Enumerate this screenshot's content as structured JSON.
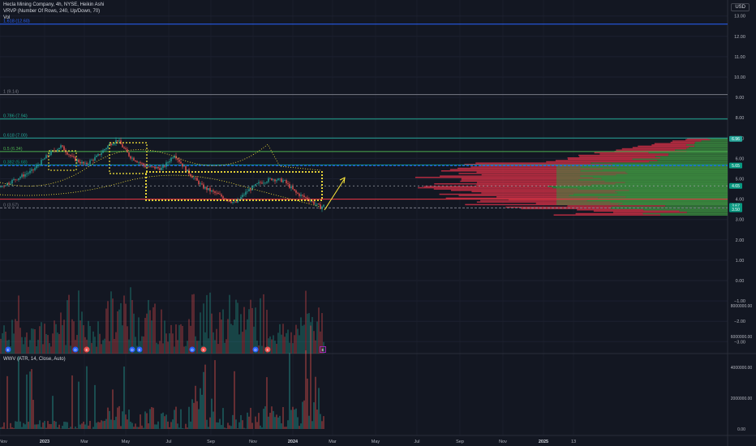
{
  "header": {
    "symbol_line": "Hecla Mining Company, 4h, NYSE, Heikin Ashi",
    "vrvp_line": "VRVP (Number Of Rows, 240, Up/Down, 70)",
    "vol_label": "Vol",
    "currency": "USD"
  },
  "fib_levels": [
    {
      "label": "1.618 (12.60)",
      "value": 12.6,
      "color": "#2962ff"
    },
    {
      "label": "1 (9.14)",
      "value": 9.14,
      "color": "#787b86"
    },
    {
      "label": "0.786 (7.94)",
      "value": 7.94,
      "color": "#22ab94"
    },
    {
      "label": "0.618 (7.00)",
      "value": 7.0,
      "color": "#26a69a"
    },
    {
      "label": "0.5 (6.34)",
      "value": 6.34,
      "color": "#4caf50"
    },
    {
      "label": "0.382 (5.68)",
      "value": 5.68,
      "color": "#089981"
    },
    {
      "label": "0 (3.57)",
      "value": 3.57,
      "color": "#787b86"
    }
  ],
  "price_axis": {
    "ticks": [
      "13.00",
      "12.00",
      "11.00",
      "10.00",
      "9.00",
      "8.00",
      "7.00",
      "6.00",
      "5.00",
      "4.00",
      "3.00",
      "2.00",
      "1.00",
      "0.00",
      "−1.00",
      "−2.00",
      "−3.00"
    ],
    "tick_values": [
      13,
      12,
      11,
      10,
      9,
      8,
      7,
      6,
      5,
      4,
      3,
      2,
      1,
      0,
      -1,
      -2,
      -3
    ],
    "markers": [
      {
        "text": "6.96",
        "value": 6.96,
        "bg": "#26a69a"
      },
      {
        "text": "5.65",
        "value": 5.65,
        "bg": "#089981"
      },
      {
        "text": "4.65",
        "value": 4.65,
        "bg": "#089981"
      },
      {
        "text": "3.67",
        "value": 3.67,
        "bg": "#089981"
      },
      {
        "text": "3.50",
        "value": 3.5,
        "bg": "#089981"
      }
    ]
  },
  "indicator": {
    "label": "WWV (ATR, 14, Close, Auto)",
    "ticks": [
      "8000000.00",
      "6000000.00",
      "4000000.00",
      "2000000.00",
      "0.00"
    ],
    "tick_values": [
      8000000,
      6000000,
      4000000,
      2000000,
      0
    ]
  },
  "time_axis": {
    "labels": [
      "Nov",
      "2023",
      "Mar",
      "May",
      "Jul",
      "Sep",
      "Nov",
      "2024",
      "Mar",
      "May",
      "Jul",
      "Sep",
      "Nov",
      "2025",
      "13"
    ]
  },
  "event_markers": [
    {
      "text": "E",
      "color": "#2962ff"
    },
    {
      "text": "D",
      "color": "#2962ff"
    },
    {
      "text": "E",
      "color": "#ef5350"
    },
    {
      "text": "D",
      "color": "#2962ff"
    },
    {
      "text": "E",
      "color": "#2962ff"
    },
    {
      "text": "D",
      "color": "#2962ff"
    },
    {
      "text": "E",
      "color": "#ef5350"
    },
    {
      "text": "D",
      "color": "#2962ff"
    },
    {
      "text": "E",
      "color": "#ef5350"
    },
    {
      "text": "E",
      "color": "#9c27b0"
    }
  ],
  "colors": {
    "background": "#131722",
    "up": "#26a69a",
    "down": "#ef5350",
    "profile_up": "#3c8c3f",
    "profile_down": "#cc2f45",
    "accent": "#2962ff",
    "annotation": "#ffeb3b"
  }
}
